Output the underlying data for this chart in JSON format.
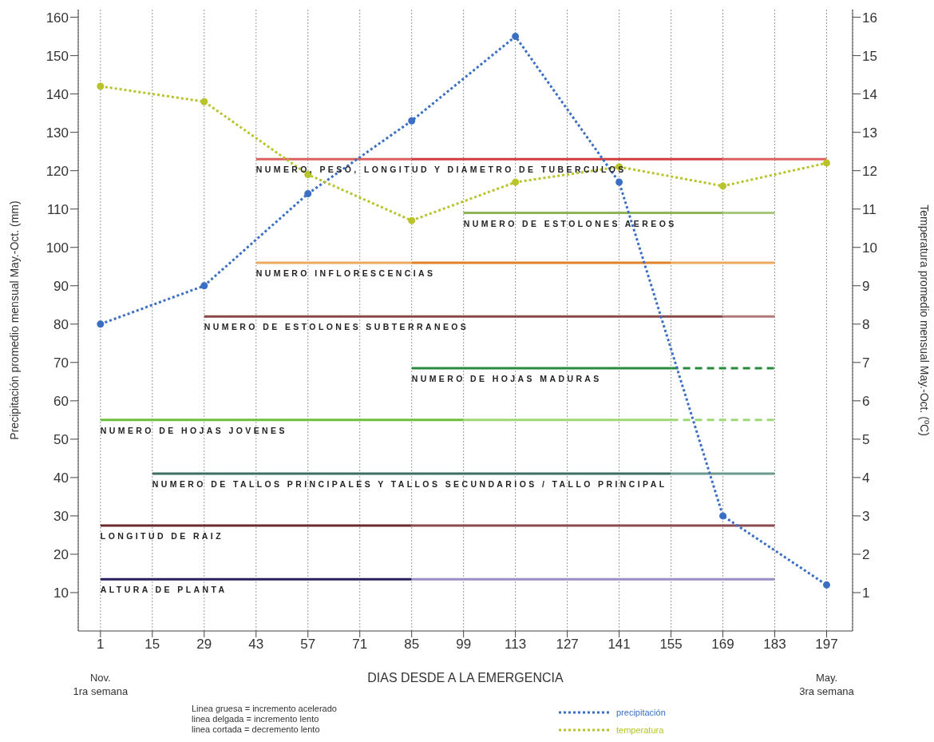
{
  "chart_data": {
    "type": "line",
    "xlabel": "DIAS DESDE A LA EMERGENCIA",
    "ylabel": "Precipitación promedio mensual May.-Oct. (mm)",
    "y2label": "Temperatura promedio mensual May.-Oct. (ºC)",
    "xlim": [
      -5,
      204
    ],
    "xticks": [
      1,
      15,
      29,
      43,
      57,
      71,
      85,
      99,
      113,
      127,
      141,
      155,
      169,
      183,
      197
    ],
    "ylim": [
      0,
      162
    ],
    "yticks": [
      10,
      20,
      30,
      40,
      50,
      60,
      70,
      80,
      90,
      100,
      110,
      120,
      130,
      140,
      150,
      160
    ],
    "y2lim": [
      0,
      16.2
    ],
    "y2ticks": [
      1,
      2,
      3,
      4,
      5,
      6,
      7,
      8,
      9,
      10,
      11,
      12,
      13,
      14,
      15,
      16
    ],
    "grid": "x",
    "legend": "bottom",
    "marker": "circle",
    "series": [
      {
        "name": "precipitación",
        "color": "#3a6fc4",
        "line_style": "dotted",
        "x": [
          1,
          29,
          57,
          85,
          113,
          141,
          169,
          197
        ],
        "values": [
          80,
          90,
          114,
          133,
          155,
          117,
          30,
          12
        ]
      },
      {
        "name": "temperatura",
        "color": "#b8c42a",
        "line_style": "dotted",
        "axis": "y2",
        "x": [
          1,
          29,
          57,
          85,
          113,
          141,
          169,
          197
        ],
        "values": [
          14.2,
          13.8,
          11.9,
          10.7,
          11.7,
          12.1,
          11.6,
          12.2
        ]
      },
      {
        "color": "#dc6060",
        "line_style": "solid",
        "marker": "none",
        "x": [
          43,
          85
        ],
        "values": [
          123,
          123
        ]
      },
      {
        "color": "#d03c3c",
        "line_style": "solid",
        "marker": "none",
        "x": [
          85,
          169
        ],
        "values": [
          123,
          123
        ]
      },
      {
        "color": "#dc6060",
        "line_style": "solid",
        "marker": "none",
        "x": [
          169,
          197
        ],
        "values": [
          123,
          123
        ]
      },
      {
        "color": "#8fb55a",
        "line_style": "solid",
        "marker": "none",
        "x": [
          99,
          169
        ],
        "values": [
          109,
          109
        ]
      },
      {
        "color": "#a8c880",
        "line_style": "solid",
        "marker": "none",
        "x": [
          169,
          183
        ],
        "values": [
          109,
          109
        ]
      },
      {
        "color": "#f0a860",
        "line_style": "solid",
        "marker": "none",
        "x": [
          43,
          85
        ],
        "values": [
          96,
          96
        ]
      },
      {
        "color": "#e0822a",
        "line_style": "solid",
        "marker": "none",
        "x": [
          85,
          155
        ],
        "values": [
          96,
          96
        ]
      },
      {
        "color": "#f0a860",
        "line_style": "solid",
        "marker": "none",
        "x": [
          155,
          183
        ],
        "values": [
          96,
          96
        ]
      },
      {
        "color": "#8b4848",
        "line_style": "solid",
        "marker": "none",
        "x": [
          29,
          169
        ],
        "values": [
          82,
          82
        ]
      },
      {
        "color": "#b07a7a",
        "line_style": "solid",
        "marker": "none",
        "x": [
          169,
          183
        ],
        "values": [
          82,
          82
        ]
      },
      {
        "color": "#2a8a3c",
        "line_style": "solid",
        "marker": "none",
        "x": [
          85,
          155
        ],
        "values": [
          68.5,
          68.5
        ]
      },
      {
        "color": "#2a8a3c",
        "line_style": "dashed",
        "marker": "none",
        "x": [
          155,
          183
        ],
        "values": [
          68.5,
          68.5
        ]
      },
      {
        "color": "#6cc03c",
        "line_style": "solid",
        "marker": "none",
        "x": [
          1,
          99
        ],
        "values": [
          55,
          55
        ]
      },
      {
        "color": "#a0d878",
        "line_style": "solid",
        "marker": "none",
        "x": [
          99,
          155
        ],
        "values": [
          55,
          55
        ]
      },
      {
        "color": "#a0d878",
        "line_style": "dashed",
        "marker": "none",
        "x": [
          155,
          183
        ],
        "values": [
          55,
          55
        ]
      },
      {
        "color": "#3c6e62",
        "line_style": "solid",
        "marker": "none",
        "x": [
          15,
          155
        ],
        "values": [
          41,
          41
        ]
      },
      {
        "color": "#6a9a8e",
        "line_style": "solid",
        "marker": "none",
        "x": [
          155,
          183
        ],
        "values": [
          41,
          41
        ]
      },
      {
        "color": "#6a2a30",
        "line_style": "solid",
        "marker": "none",
        "x": [
          1,
          85
        ],
        "values": [
          27.5,
          27.5
        ]
      },
      {
        "color": "#8a4a50",
        "line_style": "solid",
        "marker": "none",
        "x": [
          85,
          183
        ],
        "values": [
          27.5,
          27.5
        ]
      },
      {
        "color": "#2a1f5c",
        "line_style": "solid",
        "marker": "none",
        "x": [
          1,
          85
        ],
        "values": [
          13.5,
          13.5
        ]
      },
      {
        "color": "#9c8cc4",
        "line_style": "solid",
        "marker": "none",
        "x": [
          85,
          183
        ],
        "values": [
          13.5,
          13.5
        ]
      }
    ],
    "annotations": [
      {
        "text": "NUMERO, PESO, LONGITUD Y DIAMETRO DE TUBERCULOS",
        "x": 43,
        "y": 123
      },
      {
        "text": "NUMERO DE ESTOLONES AEREOS",
        "x": 99,
        "y": 109
      },
      {
        "text": "NUMERO INFLORESCENCIAS",
        "x": 43,
        "y": 96
      },
      {
        "text": "NUMERO DE ESTOLONES SUBTERRANEOS",
        "x": 29,
        "y": 82
      },
      {
        "text": "NUMERO DE HOJAS MADURAS",
        "x": 85,
        "y": 68.5
      },
      {
        "text": "NUMERO DE HOJAS JOVENES",
        "x": 1,
        "y": 55
      },
      {
        "text": "NUMERO DE TALLOS PRINCIPALES Y TALLOS SECUNDARIOS / TALLO PRINCIPAL",
        "x": 15,
        "y": 41
      },
      {
        "text": "LONGITUD DE RAIZ",
        "x": 1,
        "y": 27.5
      },
      {
        "text": "ALTURA DE PLANTA",
        "x": 1,
        "y": 13.5
      },
      "Nov.\n1ra semana",
      "May.\n3ra semana",
      "Linea gruesa = incremento acelerado",
      "linea delgada = incremento lento",
      "linea cortada = decremento lento"
    ]
  }
}
